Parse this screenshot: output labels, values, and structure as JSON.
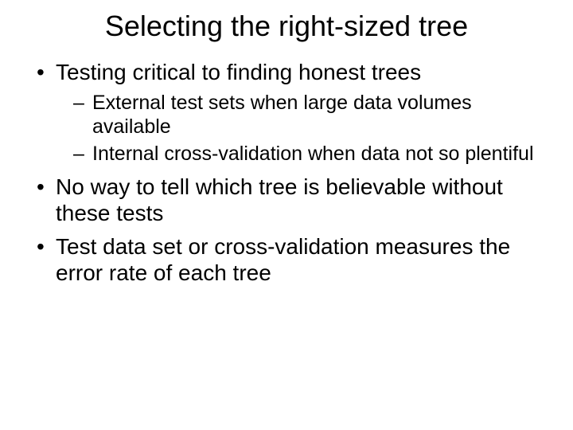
{
  "title": "Selecting the right-sized tree",
  "bullets": [
    {
      "text": "Testing critical to finding honest trees",
      "subs": [
        "External test sets when large data volumes available",
        "Internal cross-validation when data not so plentiful"
      ]
    },
    {
      "text": "No way to tell which tree is believable without these tests",
      "subs": []
    },
    {
      "text": "Test data set or cross-validation measures the error rate of each tree",
      "subs": []
    }
  ],
  "colors": {
    "background": "#ffffff",
    "text": "#000000"
  },
  "typography": {
    "title_fontsize": 36,
    "bullet_fontsize": 28,
    "sub_fontsize": 25,
    "font_family": "Arial"
  }
}
